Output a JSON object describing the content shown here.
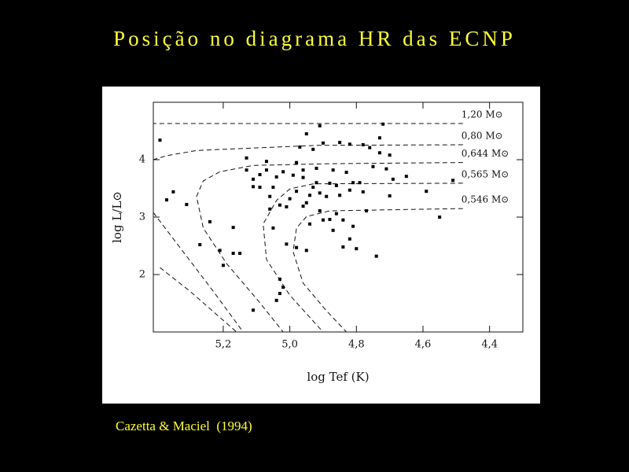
{
  "title": "Posição no diagrama HR das ECNP",
  "caption": "Cazetta & Maciel  (1994)",
  "chart_data": {
    "type": "scatter",
    "x_label": "log Tef (K)",
    "y_label": "log L/L⊙",
    "color": "#000000",
    "xlim": [
      5.41,
      4.3
    ],
    "ylim": [
      1,
      5
    ],
    "xticks": [
      {
        "value": 5.2,
        "label": "5,2"
      },
      {
        "value": 5.0,
        "label": "5,0"
      },
      {
        "value": 4.8,
        "label": "4,8"
      },
      {
        "value": 4.6,
        "label": "4,6"
      },
      {
        "value": 4.4,
        "label": "4,4"
      }
    ],
    "yticks": [
      2,
      3,
      4
    ],
    "x": [
      5.39,
      5.37,
      5.35,
      5.31,
      5.27,
      5.21,
      5.2,
      5.17,
      5.17,
      5.15,
      5.13,
      5.13,
      5.11,
      5.11,
      5.09,
      5.09,
      5.07,
      5.07,
      5.06,
      5.06,
      5.05,
      5.05,
      5.04,
      5.03,
      5.03,
      5.02,
      5.03,
      5.02,
      5.01,
      5.01,
      5.0,
      4.99,
      4.98,
      4.98,
      4.97,
      4.96,
      4.96,
      4.96,
      4.95,
      4.95,
      4.94,
      4.94,
      4.93,
      4.93,
      4.92,
      4.92,
      4.91,
      4.91,
      4.91,
      4.9,
      4.9,
      4.89,
      4.88,
      4.88,
      4.87,
      4.87,
      4.86,
      4.86,
      4.85,
      4.85,
      4.84,
      4.84,
      4.83,
      4.82,
      4.82,
      4.82,
      4.81,
      4.81,
      4.8,
      4.79,
      4.78,
      4.78,
      4.77,
      4.76,
      4.75,
      4.74,
      4.73,
      4.73,
      4.72,
      4.71,
      4.7,
      4.7,
      4.69,
      4.65,
      4.59,
      4.55,
      4.51,
      5.11,
      5.04,
      4.98,
      4.95,
      5.24
    ],
    "values": [
      4.34,
      3.3,
      3.44,
      3.22,
      2.52,
      2.42,
      2.16,
      2.82,
      2.37,
      2.37,
      4.03,
      3.82,
      3.66,
      3.53,
      3.52,
      3.74,
      3.82,
      3.97,
      3.36,
      3.14,
      2.81,
      3.52,
      3.7,
      3.21,
      1.92,
      1.78,
      1.67,
      3.79,
      3.18,
      2.53,
      3.32,
      3.73,
      3.45,
      3.95,
      4.22,
      3.82,
      3.69,
      3.19,
      4.45,
      3.25,
      2.88,
      3.38,
      4.18,
      3.52,
      3.85,
      3.6,
      4.59,
      3.11,
      3.42,
      2.95,
      4.29,
      3.36,
      3.59,
      2.96,
      2.77,
      3.82,
      3.55,
      3.06,
      4.3,
      3.38,
      2.48,
      2.95,
      3.78,
      4.27,
      2.62,
      3.47,
      2.84,
      3.6,
      2.45,
      3.6,
      4.26,
      3.44,
      3.11,
      4.21,
      3.88,
      2.32,
      4.12,
      4.38,
      4.62,
      3.84,
      4.08,
      3.37,
      3.66,
      3.71,
      3.45,
      3.0,
      3.64,
      1.38,
      1.55,
      2.47,
      2.42,
      2.92
    ],
    "tracks": [
      {
        "name": "1,20 M⊙",
        "x": [
          4.48,
          5.41,
          null,
          5.39,
          5.3,
          5.16
        ],
        "values": [
          4.63,
          4.63,
          null,
          2.12,
          1.71,
          1.0
        ]
      },
      {
        "name": "0,80 M⊙",
        "x": [
          4.48,
          4.92,
          5.16,
          5.28,
          5.37,
          5.41,
          null,
          5.41,
          5.33,
          5.23,
          5.14
        ],
        "values": [
          4.26,
          4.25,
          4.19,
          4.16,
          4.07,
          4.0,
          null,
          3.08,
          2.47,
          1.71,
          1.0
        ]
      },
      {
        "name": "0,644 M⊙",
        "x": [
          4.48,
          4.88,
          5.11,
          5.21,
          5.26,
          5.28,
          5.26,
          5.19,
          5.09,
          5.02
        ],
        "values": [
          3.95,
          3.93,
          3.9,
          3.79,
          3.63,
          3.36,
          2.81,
          2.19,
          1.51,
          1.0
        ]
      },
      {
        "name": "0,565 M⊙",
        "x": [
          4.48,
          4.93,
          5.0,
          5.04,
          5.08,
          5.07,
          5.0,
          4.9
        ],
        "values": [
          3.59,
          3.58,
          3.49,
          3.29,
          2.88,
          2.26,
          1.64,
          1.0
        ]
      },
      {
        "name": "0,546 M⊙",
        "x": [
          4.48,
          4.88,
          4.95,
          4.98,
          4.99,
          4.96,
          4.89,
          4.83
        ],
        "values": [
          3.15,
          3.11,
          3.01,
          2.81,
          2.4,
          1.85,
          1.37,
          1.0
        ]
      }
    ]
  }
}
